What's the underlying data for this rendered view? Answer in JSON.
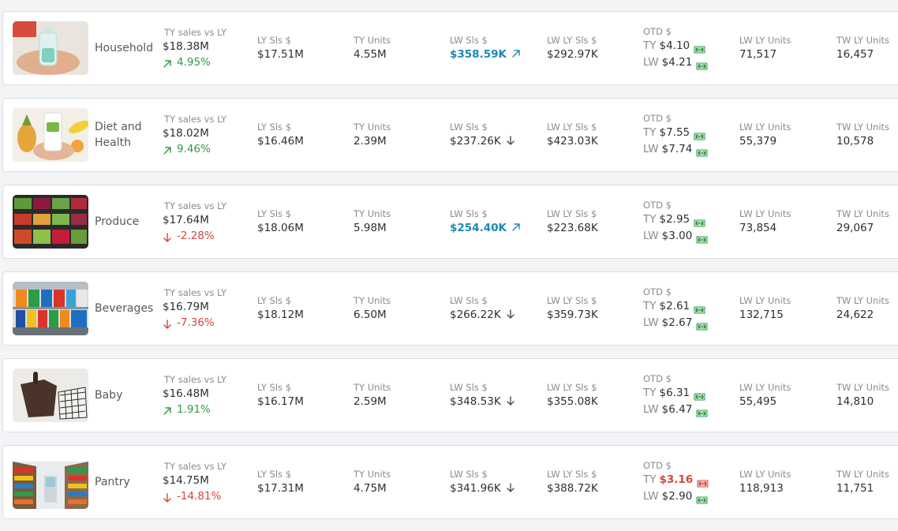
{
  "labels": {
    "ty_vs_ly": "TY sales vs LY",
    "ly_sls": "LY Sls $",
    "ty_units": "TY Units",
    "lw_sls": "LW Sls $",
    "lw_ly_sls": "LW LY Sls $",
    "otd": "OTD $",
    "ty_prefix": "TY",
    "lw_prefix": "LW",
    "lw_ly_units": "LW LY Units",
    "tw_ly_units": "TW LY Units"
  },
  "colors": {
    "positive": "#2e9b44",
    "negative": "#d6453a",
    "highlight": "#1e88b5"
  },
  "categories": [
    {
      "name": "Household",
      "image_icon": "household-image",
      "ty_sales": "$18.38M",
      "delta": "4.95%",
      "delta_dir": "up",
      "ly_sls": "$17.51M",
      "ty_units": "4.55M",
      "lw_sls": "$358.59K",
      "lw_sls_trend": "up",
      "lw_sls_highlight": true,
      "lw_ly_sls": "$292.97K",
      "otd_ty": "$4.10",
      "otd_ty_status": "ok",
      "otd_lw": "$4.21",
      "otd_lw_status": "ok",
      "lw_ly_units": "71,517",
      "tw_ly_units": "16,457"
    },
    {
      "name": "Diet and Health",
      "image_icon": "diet-health-image",
      "ty_sales": "$18.02M",
      "delta": "9.46%",
      "delta_dir": "up",
      "ly_sls": "$16.46M",
      "ty_units": "2.39M",
      "lw_sls": "$237.26K",
      "lw_sls_trend": "down",
      "lw_sls_highlight": false,
      "lw_ly_sls": "$423.03K",
      "otd_ty": "$7.55",
      "otd_ty_status": "ok",
      "otd_lw": "$7.74",
      "otd_lw_status": "ok",
      "lw_ly_units": "55,379",
      "tw_ly_units": "10,578"
    },
    {
      "name": "Produce",
      "image_icon": "produce-image",
      "ty_sales": "$17.64M",
      "delta": "-2.28%",
      "delta_dir": "down",
      "ly_sls": "$18.06M",
      "ty_units": "5.98M",
      "lw_sls": "$254.40K",
      "lw_sls_trend": "up",
      "lw_sls_highlight": true,
      "lw_ly_sls": "$223.68K",
      "otd_ty": "$2.95",
      "otd_ty_status": "ok",
      "otd_lw": "$3.00",
      "otd_lw_status": "ok",
      "lw_ly_units": "73,854",
      "tw_ly_units": "29,067"
    },
    {
      "name": "Beverages",
      "image_icon": "beverages-image",
      "ty_sales": "$16.79M",
      "delta": "-7.36%",
      "delta_dir": "down",
      "ly_sls": "$18.12M",
      "ty_units": "6.50M",
      "lw_sls": "$266.22K",
      "lw_sls_trend": "down",
      "lw_sls_highlight": false,
      "lw_ly_sls": "$359.73K",
      "otd_ty": "$2.61",
      "otd_ty_status": "ok",
      "otd_lw": "$2.67",
      "otd_lw_status": "ok",
      "lw_ly_units": "132,715",
      "tw_ly_units": "24,622"
    },
    {
      "name": "Baby",
      "image_icon": "baby-image",
      "ty_sales": "$16.48M",
      "delta": "1.91%",
      "delta_dir": "up",
      "ly_sls": "$16.17M",
      "ty_units": "2.59M",
      "lw_sls": "$348.53K",
      "lw_sls_trend": "down",
      "lw_sls_highlight": false,
      "lw_ly_sls": "$355.08K",
      "otd_ty": "$6.31",
      "otd_ty_status": "ok",
      "otd_lw": "$6.47",
      "otd_lw_status": "ok",
      "lw_ly_units": "55,495",
      "tw_ly_units": "14,810"
    },
    {
      "name": "Pantry",
      "image_icon": "pantry-image",
      "ty_sales": "$14.75M",
      "delta": "-14.81%",
      "delta_dir": "down",
      "ly_sls": "$17.31M",
      "ty_units": "4.75M",
      "lw_sls": "$341.96K",
      "lw_sls_trend": "down",
      "lw_sls_highlight": false,
      "lw_ly_sls": "$388.72K",
      "otd_ty": "$3.16",
      "otd_ty_status": "bad",
      "otd_lw": "$2.90",
      "otd_lw_status": "ok",
      "lw_ly_units": "118,913",
      "tw_ly_units": "11,751"
    }
  ]
}
